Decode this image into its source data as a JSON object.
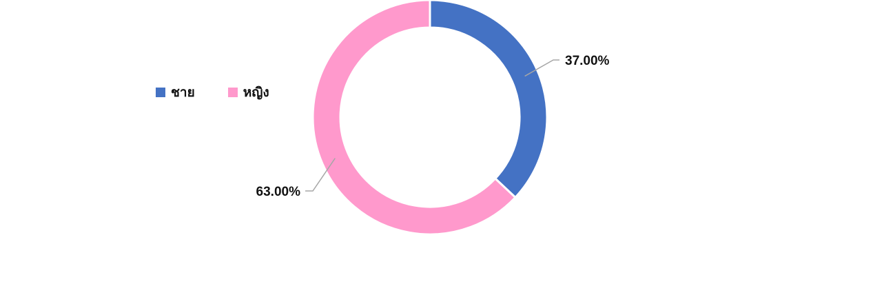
{
  "chart_data": {
    "type": "pie",
    "donut": true,
    "title": "",
    "categories": [
      "ชาย",
      "หญิง"
    ],
    "values": [
      37.0,
      63.0
    ],
    "value_labels": [
      "37.00%",
      "63.00%"
    ],
    "colors": [
      "#4472C4",
      "#FF99CC"
    ],
    "legend_position": "left",
    "start_angle": "top-clockwise"
  }
}
